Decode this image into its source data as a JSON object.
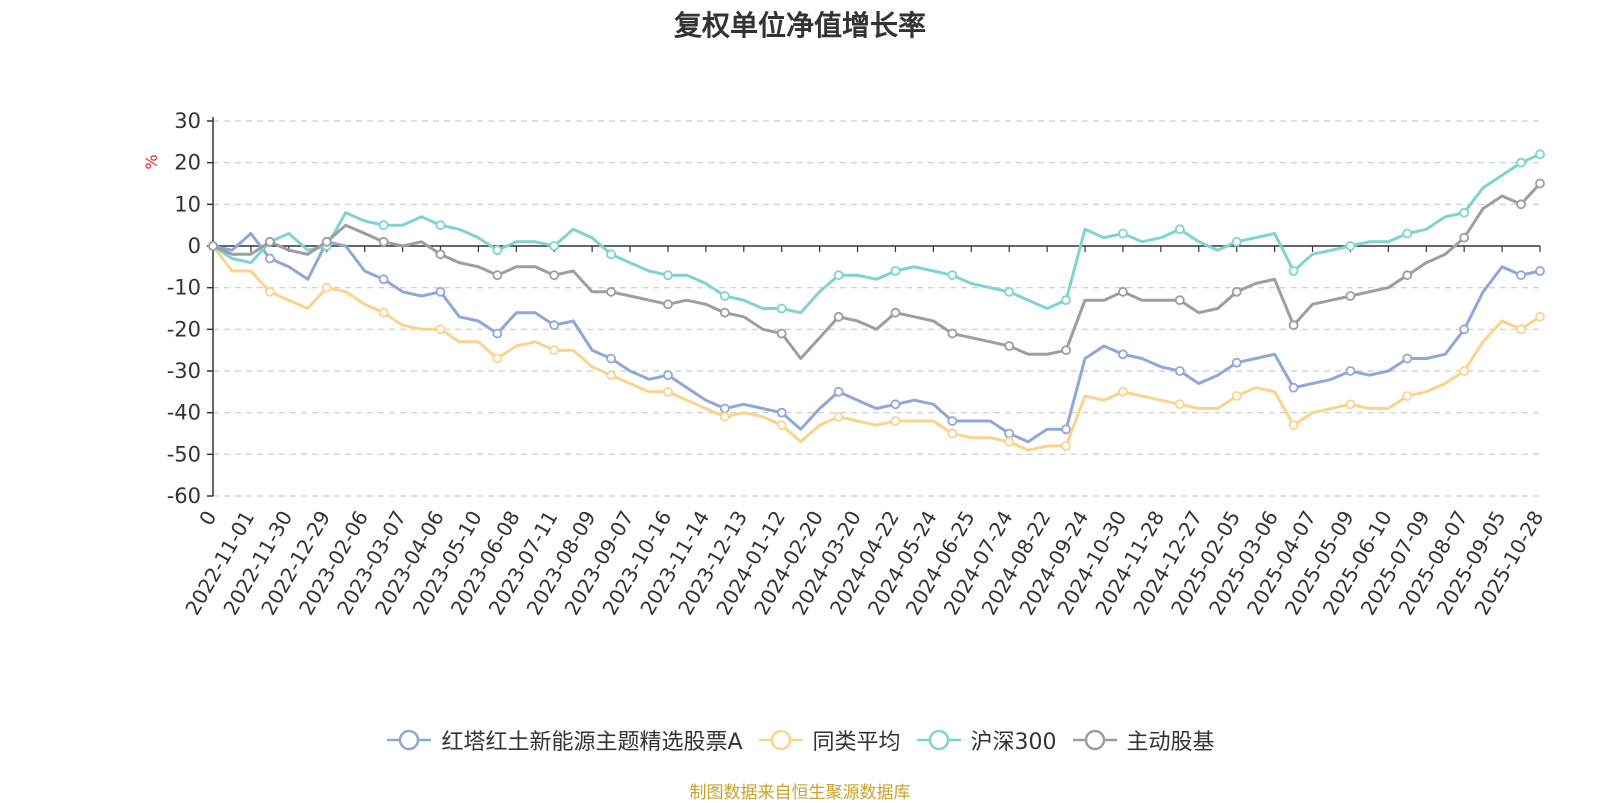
{
  "source_note": "制图数据来自恒生聚源数据库",
  "colors": {
    "axis": "#333333",
    "grid": "#cccccc",
    "source_note": "#c9a227",
    "ylabel": "#e0231f"
  },
  "chart_data": {
    "type": "line",
    "title": "复权单位净值增长率",
    "ylabel": "%",
    "ylim": [
      -60,
      30
    ],
    "yticks": [
      -60,
      -50,
      -40,
      -30,
      -20,
      -10,
      0,
      10,
      20,
      30
    ],
    "grid": true,
    "legend_position": "bottom",
    "x_tick_labels": [
      "0",
      "2022-11-01",
      "2022-11-30",
      "2022-12-29",
      "2023-02-06",
      "2023-03-07",
      "2023-04-06",
      "2023-05-10",
      "2023-06-08",
      "2023-07-11",
      "2023-08-09",
      "2023-09-07",
      "2023-10-16",
      "2023-11-14",
      "2023-12-13",
      "2024-01-12",
      "2024-02-20",
      "2024-03-20",
      "2024-04-22",
      "2024-05-24",
      "2024-06-25",
      "2024-07-24",
      "2024-08-22",
      "2024-09-24",
      "2024-10-30",
      "2024-11-28",
      "2024-12-27",
      "2025-02-05",
      "2025-03-06",
      "2025-04-07",
      "2025-05-09",
      "2025-06-10",
      "2025-07-09",
      "2025-08-07",
      "2025-09-05",
      "2025-10-28"
    ],
    "x": [
      "0",
      "2022-11-01",
      "2022-11-15",
      "2022-11-30",
      "2022-12-14",
      "2022-12-29",
      "2023-01-16",
      "2023-02-06",
      "2023-02-20",
      "2023-03-07",
      "2023-03-22",
      "2023-04-06",
      "2023-04-21",
      "2023-05-10",
      "2023-05-24",
      "2023-06-08",
      "2023-06-26",
      "2023-07-11",
      "2023-07-25",
      "2023-08-09",
      "2023-08-23",
      "2023-09-07",
      "2023-09-21",
      "2023-10-16",
      "2023-10-30",
      "2023-11-14",
      "2023-11-28",
      "2023-12-13",
      "2023-12-27",
      "2024-01-12",
      "2024-01-26",
      "2024-02-20",
      "2024-03-05",
      "2024-03-20",
      "2024-04-03",
      "2024-04-22",
      "2024-05-08",
      "2024-05-24",
      "2024-06-07",
      "2024-06-25",
      "2024-07-09",
      "2024-07-24",
      "2024-08-07",
      "2024-08-22",
      "2024-09-05",
      "2024-09-24",
      "2024-10-15",
      "2024-10-30",
      "2024-11-13",
      "2024-11-28",
      "2024-12-12",
      "2024-12-27",
      "2025-01-13",
      "2025-02-05",
      "2025-02-19",
      "2025-03-06",
      "2025-03-20",
      "2025-04-07",
      "2025-04-22",
      "2025-05-09",
      "2025-05-23",
      "2025-06-10",
      "2025-06-24",
      "2025-07-09",
      "2025-07-23",
      "2025-08-07",
      "2025-08-21",
      "2025-09-05",
      "2025-09-19",
      "2025-10-14",
      "2025-10-28"
    ],
    "series": [
      {
        "name": "红塔红土新能源主题精选股票A",
        "color": "#8fa8d9",
        "values": [
          0,
          -1,
          3,
          -3,
          -5,
          -8,
          1,
          0,
          -6,
          -8,
          -11,
          -12,
          -11,
          -17,
          -18,
          -21,
          -16,
          -16,
          -19,
          -18,
          -25,
          -27,
          -30,
          -32,
          -31,
          -34,
          -37,
          -39,
          -38,
          -39,
          -40,
          -44,
          -39,
          -35,
          -37,
          -39,
          -38,
          -37,
          -38,
          -42,
          -42,
          -42,
          -45,
          -47,
          -44,
          -44,
          -27,
          -24,
          -26,
          -27,
          -29,
          -30,
          -33,
          -31,
          -28,
          -27,
          -26,
          -34,
          -33,
          -32,
          -30,
          -31,
          -30,
          -27,
          -27,
          -26,
          -20,
          -11,
          -5,
          -7,
          -6
        ]
      },
      {
        "name": "同类平均",
        "color": "#fbd38d",
        "values": [
          0,
          -6,
          -6,
          -11,
          -13,
          -15,
          -10,
          -11,
          -14,
          -16,
          -19,
          -20,
          -20,
          -23,
          -23,
          -27,
          -24,
          -23,
          -25,
          -25,
          -29,
          -31,
          -33,
          -35,
          -35,
          -37,
          -39,
          -41,
          -40,
          -41,
          -43,
          -47,
          -43,
          -41,
          -42,
          -43,
          -42,
          -42,
          -42,
          -45,
          -46,
          -46,
          -47,
          -49,
          -48,
          -48,
          -36,
          -37,
          -35,
          -36,
          -37,
          -38,
          -39,
          -39,
          -36,
          -34,
          -35,
          -43,
          -40,
          -39,
          -38,
          -39,
          -39,
          -36,
          -35,
          -33,
          -30,
          -23,
          -18,
          -20,
          -17
        ]
      },
      {
        "name": "沪深300",
        "color": "#7fd3d0",
        "values": [
          0,
          -3,
          -4,
          1,
          3,
          -1,
          0,
          8,
          6,
          5,
          5,
          7,
          5,
          4,
          2,
          -1,
          1,
          1,
          0,
          4,
          2,
          -2,
          -4,
          -6,
          -7,
          -7,
          -9,
          -12,
          -13,
          -15,
          -15,
          -16,
          -11,
          -7,
          -7,
          -8,
          -6,
          -5,
          -6,
          -7,
          -9,
          -10,
          -11,
          -13,
          -15,
          -13,
          4,
          2,
          3,
          1,
          2,
          4,
          1,
          -1,
          1,
          2,
          3,
          -6,
          -2,
          -1,
          0,
          1,
          1,
          3,
          4,
          7,
          8,
          14,
          17,
          20,
          22
        ]
      },
      {
        "name": "主动股基",
        "color": "#9e9e9e",
        "values": [
          0,
          -2,
          -2,
          1,
          -1,
          -2,
          1,
          5,
          3,
          1,
          0,
          1,
          -2,
          -4,
          -5,
          -7,
          -5,
          -5,
          -7,
          -6,
          -11,
          -11,
          -12,
          -13,
          -14,
          -13,
          -14,
          -16,
          -17,
          -20,
          -21,
          -27,
          -22,
          -17,
          -18,
          -20,
          -16,
          -17,
          -18,
          -21,
          -22,
          -23,
          -24,
          -26,
          -26,
          -25,
          -13,
          -13,
          -11,
          -13,
          -13,
          -13,
          -16,
          -15,
          -11,
          -9,
          -8,
          -19,
          -14,
          -13,
          -12,
          -11,
          -10,
          -7,
          -4,
          -2,
          2,
          9,
          12,
          10,
          15
        ]
      }
    ]
  }
}
